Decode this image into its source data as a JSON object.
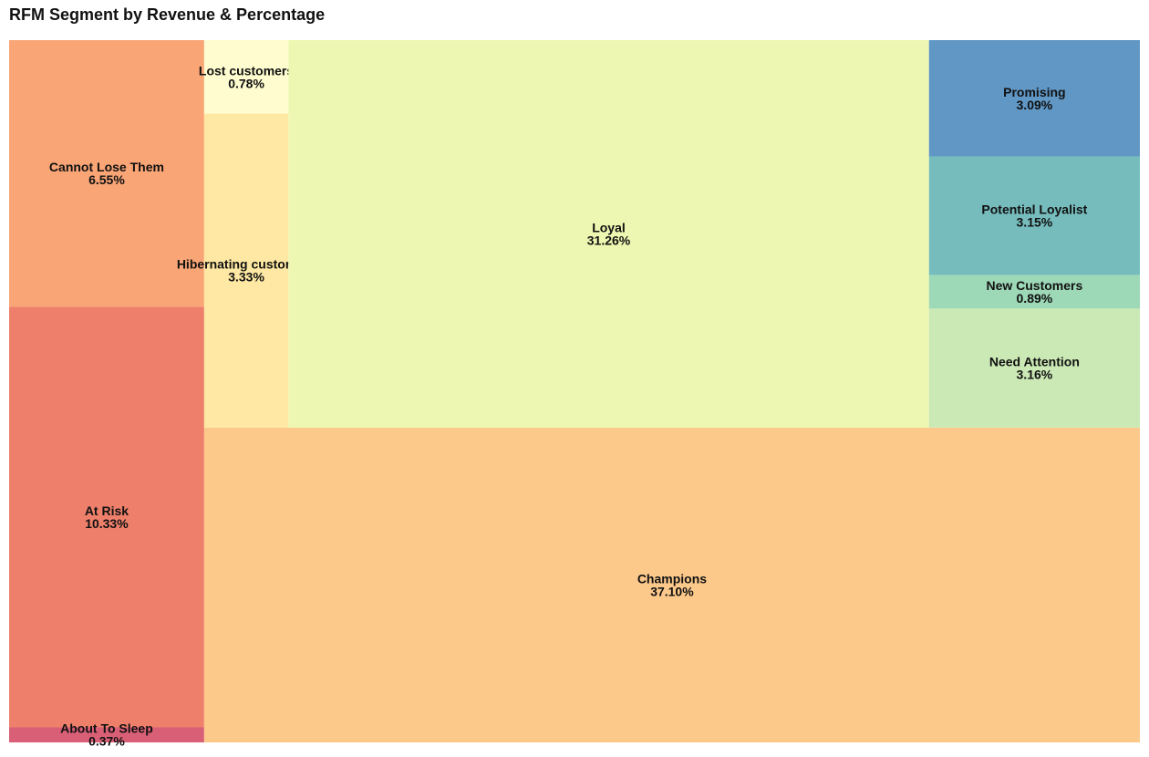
{
  "chart_data": {
    "type": "treemap",
    "title": "RFM Segment by Revenue & Percentage",
    "value_unit": "percent of revenue",
    "segments": [
      {
        "label": "Cannot Lose Them",
        "percent_text": "6.55%",
        "value": 6.55,
        "color": "#f9a576"
      },
      {
        "label": "At Risk",
        "percent_text": "10.33%",
        "value": 10.33,
        "color": "#ee806b"
      },
      {
        "label": "About To Sleep",
        "percent_text": "0.37%",
        "value": 0.37,
        "color": "#d95f76"
      },
      {
        "label": "Lost customers",
        "percent_text": "0.78%",
        "value": 0.78,
        "color": "#fffdd0"
      },
      {
        "label": "Hibernating customers",
        "percent_text": "3.33%",
        "value": 3.33,
        "color": "#fee8a3"
      },
      {
        "label": "Loyal",
        "percent_text": "31.26%",
        "value": 31.26,
        "color": "#eef7b1"
      },
      {
        "label": "Promising",
        "percent_text": "3.09%",
        "value": 3.09,
        "color": "#6097c5"
      },
      {
        "label": "Potential Loyalist",
        "percent_text": "3.15%",
        "value": 3.15,
        "color": "#76bcbd"
      },
      {
        "label": "New Customers",
        "percent_text": "0.89%",
        "value": 0.89,
        "color": "#9dd8b7"
      },
      {
        "label": "Need Attention",
        "percent_text": "3.16%",
        "value": 3.16,
        "color": "#cbe9b5"
      },
      {
        "label": "Champions",
        "percent_text": "37.10%",
        "value": 37.1,
        "color": "#fcc98b"
      }
    ]
  }
}
